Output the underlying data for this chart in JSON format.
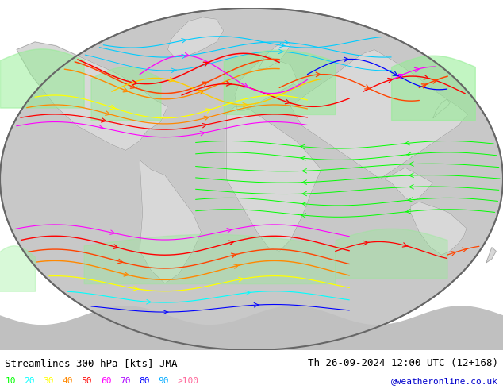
{
  "title_left": "Streamlines 300 hPa [kts] JMA",
  "title_right": "Th 26-09-2024 12:00 UTC (12+168)",
  "credit": "@weatheronline.co.uk",
  "legend_values": [
    "10",
    "20",
    "30",
    "40",
    "50",
    "60",
    "70",
    "80",
    "90",
    ">100"
  ],
  "legend_colors": [
    "#00ff00",
    "#00ffff",
    "#ffff00",
    "#ff8800",
    "#ff0000",
    "#ff00ff",
    "#aa00ff",
    "#0000ff",
    "#00aaff",
    "#ff6699"
  ],
  "background_color": "#ffffff",
  "title_fontsize": 9,
  "legend_fontsize": 8,
  "credit_fontsize": 8,
  "title_color": "#000000",
  "credit_color": "#0000cc"
}
